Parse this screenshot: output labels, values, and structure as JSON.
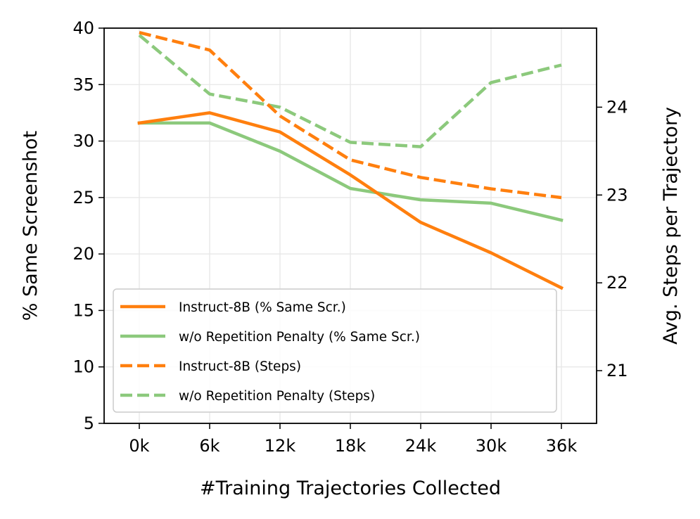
{
  "chart_data": {
    "type": "line",
    "categories": [
      "0k",
      "6k",
      "12k",
      "18k",
      "24k",
      "30k",
      "36k"
    ],
    "xlabel": "#Training Trajectories Collected",
    "ylabel_left": "% Same Screenshot",
    "ylabel_right": "Avg. Steps per Trajectory",
    "ylim_left": [
      5,
      40
    ],
    "yticks_left": [
      "5",
      "10",
      "15",
      "20",
      "25",
      "30",
      "35",
      "40"
    ],
    "ylim_right": [
      20.4,
      24.9
    ],
    "yticks_right": [
      "21",
      "22",
      "23",
      "24"
    ],
    "grid": true,
    "legend_position": "lower-left",
    "series": [
      {
        "name": "Instruct-8B (% Same Scr.)",
        "axis": "left",
        "style": "solid",
        "color": "#ff7f0e",
        "values": [
          31.6,
          32.5,
          30.8,
          27.0,
          22.8,
          20.1,
          17.0
        ]
      },
      {
        "name": "w/o Repetition Penalty (% Same Scr.)",
        "axis": "left",
        "style": "solid",
        "color": "#8cc97c",
        "values": [
          31.6,
          31.6,
          29.1,
          25.8,
          24.8,
          24.5,
          23.0
        ]
      },
      {
        "name": "Instruct-8B (Steps)",
        "axis": "right",
        "style": "dashed",
        "color": "#ff7f0e",
        "values": [
          24.85,
          24.65,
          23.9,
          23.4,
          23.2,
          23.07,
          22.97
        ]
      },
      {
        "name": "w/o Repetition Penalty (Steps)",
        "axis": "right",
        "style": "dashed",
        "color": "#8cc97c",
        "values": [
          24.82,
          24.15,
          24.0,
          23.6,
          23.55,
          24.28,
          24.48
        ]
      }
    ]
  }
}
